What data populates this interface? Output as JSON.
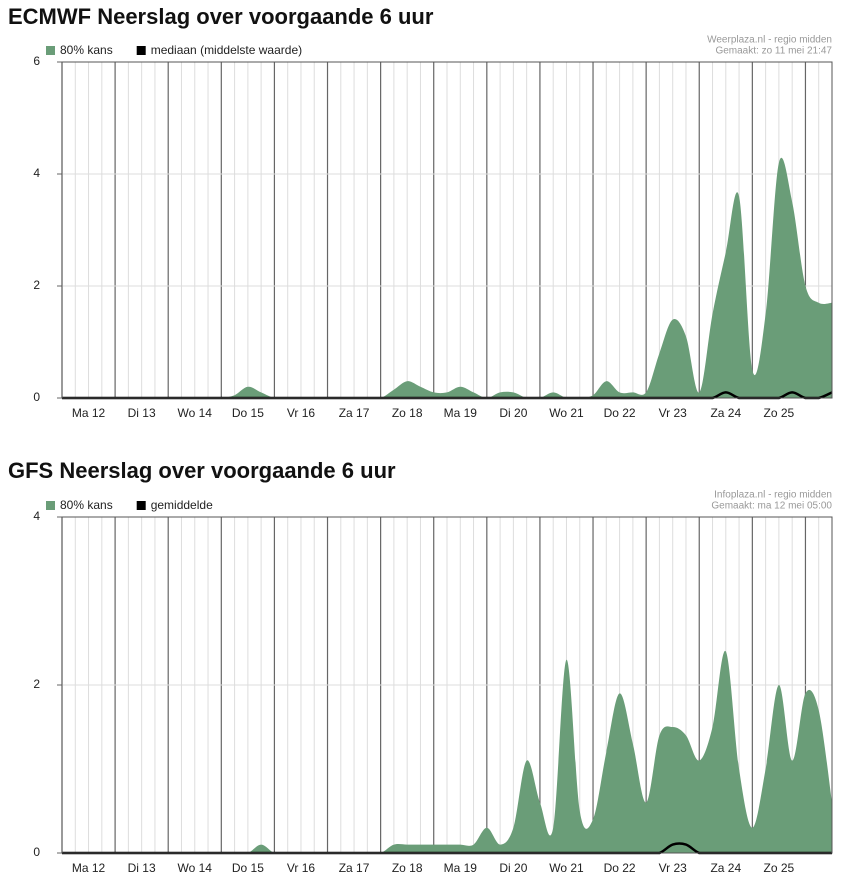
{
  "chart_data": [
    {
      "type": "area",
      "title": "ECMWF Neerslag over voorgaande 6 uur",
      "source": [
        "Weerplaza.nl - regio midden",
        "Gemaakt: zo 11 mei 21:47"
      ],
      "x": [
        0,
        0.25,
        0.5,
        0.75,
        1,
        1.25,
        1.5,
        1.75,
        2,
        2.25,
        2.5,
        2.75,
        3,
        3.25,
        3.5,
        3.75,
        4,
        4.25,
        4.5,
        4.75,
        5,
        5.25,
        5.5,
        5.75,
        6,
        6.25,
        6.5,
        6.75,
        7,
        7.25,
        7.5,
        7.75,
        8,
        8.25,
        8.5,
        8.75,
        9,
        9.25,
        9.5,
        9.75,
        10,
        10.25,
        10.5,
        10.75,
        11,
        11.25,
        11.5,
        11.75,
        12,
        12.25,
        12.5,
        12.75,
        13,
        13.25,
        13.5,
        13.75,
        14,
        14.25,
        14.5
      ],
      "series": [
        {
          "name": "80% kans",
          "color": "#6a9d78",
          "values": [
            0,
            0,
            0,
            0,
            0,
            0,
            0,
            0,
            0,
            0,
            0,
            0,
            0,
            0.05,
            0.2,
            0.1,
            0,
            0,
            0,
            0,
            0,
            0,
            0,
            0,
            0,
            0.15,
            0.3,
            0.2,
            0.1,
            0.1,
            0.2,
            0.1,
            0,
            0.1,
            0.1,
            0,
            0,
            0.1,
            0,
            0,
            0.05,
            0.3,
            0.1,
            0.1,
            0.1,
            0.8,
            1.4,
            1.1,
            0.1,
            1.5,
            2.6,
            3.6,
            0.5,
            1.5,
            4.2,
            3.5,
            2.0,
            1.7,
            1.7
          ]
        },
        {
          "name": "mediaan (middelste waarde)",
          "color": "#000000",
          "values": [
            0,
            0,
            0,
            0,
            0,
            0,
            0,
            0,
            0,
            0,
            0,
            0,
            0,
            0,
            0,
            0,
            0,
            0,
            0,
            0,
            0,
            0,
            0,
            0,
            0,
            0,
            0,
            0,
            0,
            0,
            0,
            0,
            0,
            0,
            0,
            0,
            0,
            0,
            0,
            0,
            0,
            0,
            0,
            0,
            0,
            0,
            0,
            0,
            0,
            0,
            0.1,
            0,
            0,
            0,
            0,
            0.1,
            0,
            0,
            0.1
          ]
        }
      ],
      "xlim": [
        0,
        14.5
      ],
      "xticks": [
        {
          "value": 0.5,
          "label": "Ma 12"
        },
        {
          "value": 1.5,
          "label": "Di 13"
        },
        {
          "value": 2.5,
          "label": "Wo 14"
        },
        {
          "value": 3.5,
          "label": "Do 15"
        },
        {
          "value": 4.5,
          "label": "Vr 16"
        },
        {
          "value": 5.5,
          "label": "Za 17"
        },
        {
          "value": 6.5,
          "label": "Zo 18"
        },
        {
          "value": 7.5,
          "label": "Ma 19"
        },
        {
          "value": 8.5,
          "label": "Di 20"
        },
        {
          "value": 9.5,
          "label": "Wo 21"
        },
        {
          "value": 10.5,
          "label": "Do 22"
        },
        {
          "value": 11.5,
          "label": "Vr 23"
        },
        {
          "value": 12.5,
          "label": "Za 24"
        },
        {
          "value": 13.5,
          "label": "Zo 25"
        }
      ],
      "ylim": [
        0,
        6
      ],
      "yticks": [
        0,
        2,
        4,
        6
      ],
      "grid": true
    },
    {
      "type": "area",
      "title": "GFS Neerslag over voorgaande 6 uur",
      "source": [
        "Infoplaza.nl - regio midden",
        "Gemaakt: ma 12 mei 05:00"
      ],
      "x": [
        0,
        0.25,
        0.5,
        0.75,
        1,
        1.25,
        1.5,
        1.75,
        2,
        2.25,
        2.5,
        2.75,
        3,
        3.25,
        3.5,
        3.75,
        4,
        4.25,
        4.5,
        4.75,
        5,
        5.25,
        5.5,
        5.75,
        6,
        6.25,
        6.5,
        6.75,
        7,
        7.25,
        7.5,
        7.75,
        8,
        8.25,
        8.5,
        8.75,
        9,
        9.25,
        9.5,
        9.75,
        10,
        10.25,
        10.5,
        10.75,
        11,
        11.25,
        11.5,
        11.75,
        12,
        12.25,
        12.5,
        12.75,
        13,
        13.25,
        13.5,
        13.75,
        14,
        14.25,
        14.5
      ],
      "series": [
        {
          "name": "80% kans",
          "color": "#6a9d78",
          "values": [
            0,
            0,
            0,
            0,
            0,
            0,
            0,
            0,
            0,
            0,
            0,
            0,
            0,
            0,
            0,
            0.1,
            0,
            0,
            0,
            0,
            0,
            0,
            0,
            0,
            0,
            0.1,
            0.1,
            0.1,
            0.1,
            0.1,
            0.1,
            0.1,
            0.3,
            0.1,
            0.3,
            1.1,
            0.6,
            0.3,
            2.3,
            0.5,
            0.4,
            1.2,
            1.9,
            1.3,
            0.6,
            1.4,
            1.5,
            1.4,
            1.1,
            1.5,
            2.4,
            1.0,
            0.3,
            1.0,
            2.0,
            1.1,
            1.9,
            1.7,
            0.6
          ]
        },
        {
          "name": "gemiddelde",
          "color": "#000000",
          "values": [
            0,
            0,
            0,
            0,
            0,
            0,
            0,
            0,
            0,
            0,
            0,
            0,
            0,
            0,
            0,
            0,
            0,
            0,
            0,
            0,
            0,
            0,
            0,
            0,
            0,
            0,
            0,
            0,
            0,
            0,
            0,
            0,
            0,
            0,
            0,
            0,
            0,
            0,
            0,
            0,
            0,
            0,
            0,
            0,
            0,
            0,
            0.1,
            0.1,
            0,
            0,
            0,
            0,
            0,
            0,
            0,
            0,
            0,
            0,
            0
          ]
        }
      ],
      "xlim": [
        0,
        14.5
      ],
      "xticks": [
        {
          "value": 0.5,
          "label": "Ma 12"
        },
        {
          "value": 1.5,
          "label": "Di 13"
        },
        {
          "value": 2.5,
          "label": "Wo 14"
        },
        {
          "value": 3.5,
          "label": "Do 15"
        },
        {
          "value": 4.5,
          "label": "Vr 16"
        },
        {
          "value": 5.5,
          "label": "Za 17"
        },
        {
          "value": 6.5,
          "label": "Zo 18"
        },
        {
          "value": 7.5,
          "label": "Ma 19"
        },
        {
          "value": 8.5,
          "label": "Di 20"
        },
        {
          "value": 9.5,
          "label": "Wo 21"
        },
        {
          "value": 10.5,
          "label": "Do 22"
        },
        {
          "value": 11.5,
          "label": "Vr 23"
        },
        {
          "value": 12.5,
          "label": "Za 24"
        },
        {
          "value": 13.5,
          "label": "Zo 25"
        }
      ],
      "ylim": [
        0,
        4
      ],
      "yticks": [
        0,
        2,
        4
      ],
      "grid": true
    }
  ]
}
